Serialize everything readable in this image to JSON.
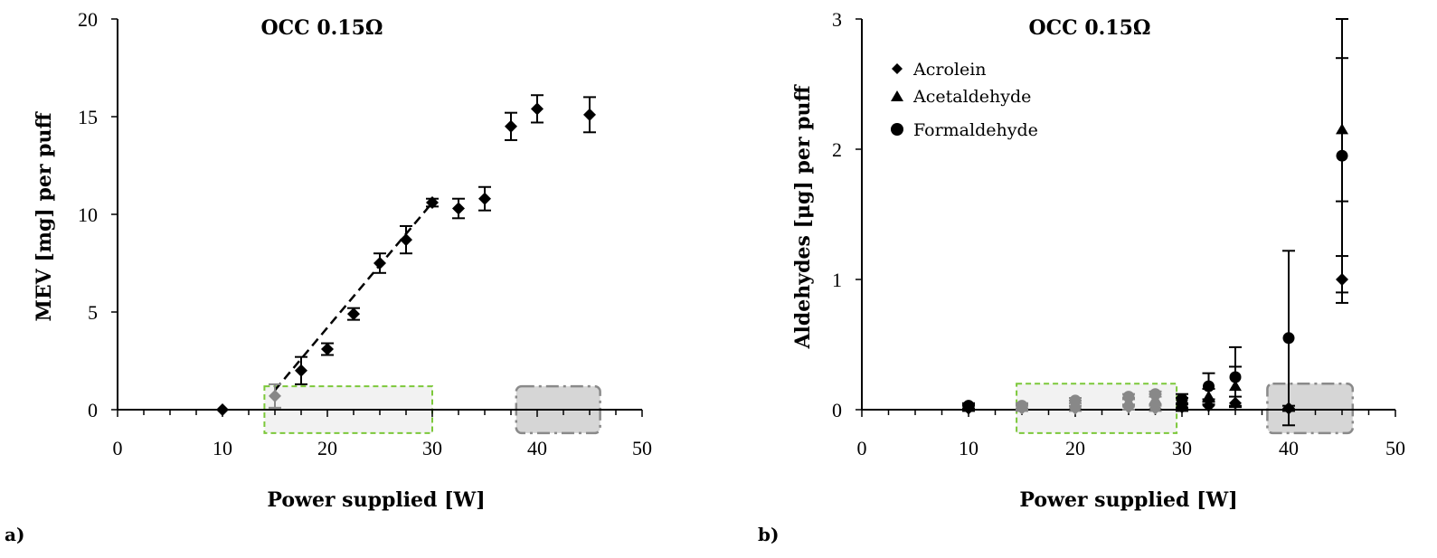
{
  "chart_data": [
    {
      "type": "scatter",
      "panel_label": "a)",
      "title": "OCC 0.15Ω",
      "xlabel": "Power supplied [W]",
      "ylabel": "MEV [mg] per puff",
      "xlim": [
        0,
        50
      ],
      "ylim": [
        0,
        20
      ],
      "xticks": [
        "0",
        "10",
        "20",
        "30",
        "40",
        "50"
      ],
      "yticks": [
        "0",
        "5",
        "10",
        "15",
        "20"
      ],
      "grid": false,
      "series": [
        {
          "marker": "diamond",
          "color": "#000000",
          "points": [
            {
              "x": 10,
              "y": 0.0,
              "err": 0.0
            },
            {
              "x": 15,
              "y": 0.7,
              "err": 0.6,
              "color": "#888888"
            },
            {
              "x": 17.5,
              "y": 2.0,
              "err": 0.7
            },
            {
              "x": 20,
              "y": 3.1,
              "err": 0.3
            },
            {
              "x": 22.5,
              "y": 4.9,
              "err": 0.3
            },
            {
              "x": 25,
              "y": 7.5,
              "err": 0.5
            },
            {
              "x": 27.5,
              "y": 8.7,
              "err": 0.7
            },
            {
              "x": 30,
              "y": 10.6,
              "err": 0.2
            },
            {
              "x": 32.5,
              "y": 10.3,
              "err": 0.5
            },
            {
              "x": 35,
              "y": 10.8,
              "err": 0.6
            },
            {
              "x": 37.5,
              "y": 14.5,
              "err": 0.7
            },
            {
              "x": 40,
              "y": 15.4,
              "err": 0.7
            },
            {
              "x": 45,
              "y": 15.1,
              "err": 0.9
            }
          ]
        }
      ],
      "fit_line": {
        "x": [
          15,
          30
        ],
        "y": [
          1.0,
          10.6
        ],
        "style": "dashed"
      },
      "regions": [
        {
          "x": [
            14,
            30
          ],
          "y": [
            -1.2,
            1.2
          ],
          "style": "green-dashed"
        },
        {
          "x": [
            38,
            46
          ],
          "y": [
            -1.2,
            1.2
          ],
          "style": "gray-dashdot"
        }
      ]
    },
    {
      "type": "scatter",
      "panel_label": "b)",
      "title": "OCC 0.15Ω",
      "xlabel": "Power supplied [W]",
      "ylabel": "Aldehydes [μg] per puff",
      "xlim": [
        0,
        50
      ],
      "ylim": [
        0,
        3
      ],
      "xticks": [
        "0",
        "10",
        "20",
        "30",
        "40",
        "50"
      ],
      "yticks": [
        "0",
        "1",
        "2",
        "3"
      ],
      "grid": false,
      "legend_position": "top-left",
      "series": [
        {
          "name": "Acrolein",
          "marker": "diamond",
          "points": [
            {
              "x": 10,
              "y": 0.01,
              "err": 0.02
            },
            {
              "x": 15,
              "y": 0.01,
              "err": 0.02,
              "color": "#888888"
            },
            {
              "x": 20,
              "y": 0.01,
              "err": 0.02,
              "color": "#888888"
            },
            {
              "x": 25,
              "y": 0.02,
              "err": 0.02,
              "color": "#888888"
            },
            {
              "x": 27.5,
              "y": 0.01,
              "err": 0.02,
              "color": "#888888"
            },
            {
              "x": 30,
              "y": 0.02,
              "err": 0.03
            },
            {
              "x": 32.5,
              "y": 0.03,
              "err": 0.03
            },
            {
              "x": 35,
              "y": 0.05,
              "err": 0.05
            },
            {
              "x": 40,
              "y": 0.01,
              "err": 0.02
            },
            {
              "x": 45,
              "y": 1.0,
              "err": 0.18
            }
          ]
        },
        {
          "name": "Acetaldehyde",
          "marker": "triangle",
          "points": [
            {
              "x": 10,
              "y": 0.02,
              "err": 0.02
            },
            {
              "x": 15,
              "y": 0.02,
              "err": 0.02,
              "color": "#888888"
            },
            {
              "x": 20,
              "y": 0.05,
              "err": 0.02,
              "color": "#888888"
            },
            {
              "x": 25,
              "y": 0.06,
              "err": 0.03,
              "color": "#888888"
            },
            {
              "x": 27.5,
              "y": 0.08,
              "err": 0.04,
              "color": "#888888"
            },
            {
              "x": 30,
              "y": 0.05,
              "err": 0.04
            },
            {
              "x": 32.5,
              "y": 0.1,
              "err": 0.06
            },
            {
              "x": 35,
              "y": 0.18,
              "err": 0.15
            },
            {
              "x": 45,
              "y": 2.15,
              "err": 0.55
            }
          ]
        },
        {
          "name": "Formaldehyde",
          "marker": "circle",
          "points": [
            {
              "x": 10,
              "y": 0.03,
              "err": 0.02
            },
            {
              "x": 15,
              "y": 0.03,
              "err": 0.02,
              "color": "#888888"
            },
            {
              "x": 20,
              "y": 0.07,
              "err": 0.02,
              "color": "#888888"
            },
            {
              "x": 25,
              "y": 0.1,
              "err": 0.02,
              "color": "#888888"
            },
            {
              "x": 27.5,
              "y": 0.12,
              "err": 0.02,
              "color": "#888888"
            },
            {
              "x": 30,
              "y": 0.08,
              "err": 0.04
            },
            {
              "x": 32.5,
              "y": 0.18,
              "err": 0.1
            },
            {
              "x": 35,
              "y": 0.25,
              "err": 0.23
            },
            {
              "x": 40,
              "y": 0.55,
              "err": 0.67
            },
            {
              "x": 45,
              "y": 1.95,
              "err": 1.05
            }
          ]
        }
      ],
      "regions": [
        {
          "x": [
            14.5,
            29.5
          ],
          "y": [
            -0.18,
            0.2
          ],
          "style": "green-dashed"
        },
        {
          "x": [
            38,
            46
          ],
          "y": [
            -0.18,
            0.2
          ],
          "style": "gray-dashdot"
        }
      ]
    }
  ]
}
